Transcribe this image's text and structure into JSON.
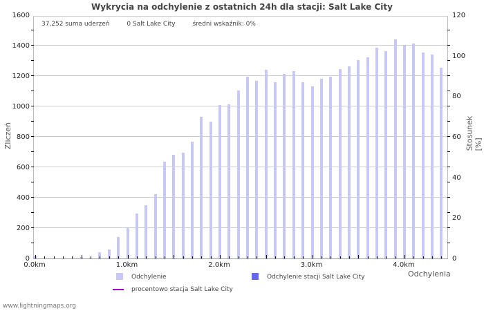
{
  "header": {
    "title": "Wykrycia na odchylenie z ostatnich 24h dla stacji: Salt Lake City"
  },
  "stats": {
    "total": "37,252 suma uderzeń",
    "station": "0 Salt Lake City",
    "ratio": "średni wskaźnik: 0%"
  },
  "axes": {
    "left_label": "Zliczeń",
    "right_label": "Stosunek [%]",
    "x_label": "Odchylenia",
    "left_ticks": [
      "0",
      "200",
      "400",
      "600",
      "800",
      "1000",
      "1200",
      "1400",
      "1600"
    ],
    "right_ticks": [
      "0",
      "20",
      "40",
      "60",
      "80",
      "100",
      "120"
    ],
    "x_ticks": [
      "0.0km",
      "1.0km",
      "2.0km",
      "3.0km",
      "4.0km"
    ]
  },
  "legend": {
    "items": [
      {
        "label": "Odchylenie",
        "color": "#c8c8f8"
      },
      {
        "label": "Odchylenie stacji Salt Lake City",
        "color": "#6666ee"
      },
      {
        "label": "procentowo stacja Salt Lake City",
        "color": "#aa00cc"
      }
    ]
  },
  "footer": {
    "credit": "www.lightningmaps.org"
  },
  "chart_data": {
    "type": "bar",
    "title": "Wykrycia na odchylenie z ostatnich 24h dla stacji: Salt Lake City",
    "xlabel": "Odchylenia",
    "ylabel": "Zliczeń",
    "y2label": "Stosunek [%]",
    "ylim": [
      0,
      1600
    ],
    "y2lim": [
      0,
      120
    ],
    "grid": true,
    "legend_position": "bottom",
    "categories": [
      "0.0",
      "0.1",
      "0.2",
      "0.3",
      "0.4",
      "0.5",
      "0.6",
      "0.7",
      "0.8",
      "0.9",
      "1.0",
      "1.1",
      "1.2",
      "1.3",
      "1.4",
      "1.5",
      "1.6",
      "1.7",
      "1.8",
      "1.9",
      "2.0",
      "2.1",
      "2.2",
      "2.3",
      "2.4",
      "2.5",
      "2.6",
      "2.7",
      "2.8",
      "2.9",
      "3.0",
      "3.1",
      "3.2",
      "3.3",
      "3.4",
      "3.5",
      "3.6",
      "3.7",
      "3.8",
      "3.9",
      "4.0",
      "4.1",
      "4.2",
      "4.3",
      "4.4"
    ],
    "series": [
      {
        "name": "Odchylenie",
        "values": [
          20,
          0,
          0,
          0,
          0,
          10,
          5,
          40,
          60,
          140,
          205,
          295,
          350,
          425,
          635,
          680,
          695,
          770,
          930,
          900,
          1010,
          1015,
          1105,
          1195,
          1170,
          1240,
          1160,
          1215,
          1230,
          1160,
          1130,
          1180,
          1195,
          1245,
          1265,
          1305,
          1325,
          1385,
          1365,
          1440,
          1400,
          1415,
          1355,
          1340,
          1255
        ]
      },
      {
        "name": "Odchylenie stacji Salt Lake City",
        "values": []
      },
      {
        "name": "procentowo stacja Salt Lake City",
        "values": []
      }
    ]
  }
}
